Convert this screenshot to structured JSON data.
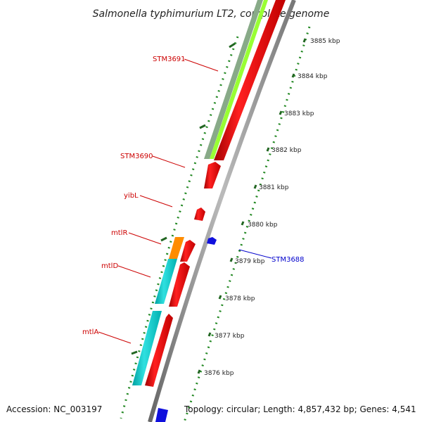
{
  "title": "Salmonella typhimurium LT2, complete genome",
  "footer": {
    "accession": "Accession: NC_003197",
    "topology": "Topology: circular; Length: 4,857,432 bp; Genes: 4,541"
  },
  "scale_ticks": [
    "3876 kbp",
    "3877 kbp",
    "3878 kbp",
    "3879 kbp",
    "3880 kbp",
    "3881 kbp",
    "3882 kbp",
    "3883 kbp",
    "3884 kbp",
    "3885 kbp"
  ],
  "gene_labels": [
    {
      "name": "STM3691",
      "color": "#cc0000"
    },
    {
      "name": "STM3690",
      "color": "#cc0000"
    },
    {
      "name": "yibL",
      "color": "#cc0000"
    },
    {
      "name": "mtlR",
      "color": "#cc0000"
    },
    {
      "name": "mtlD",
      "color": "#cc0000"
    },
    {
      "name": "mtlA",
      "color": "#cc0000"
    },
    {
      "name": "STM3688",
      "color": "#0000cc"
    }
  ],
  "colors": {
    "forward_cds": "#ff0000",
    "reverse_cds": "#0000ff",
    "track_cyan": "#00c8c8",
    "track_orange": "#ff8c00",
    "track_lightgreen": "#99ff33",
    "track_grayish_green": "#88aa88",
    "backbone": "#888888",
    "scale_dots": "#228822"
  }
}
